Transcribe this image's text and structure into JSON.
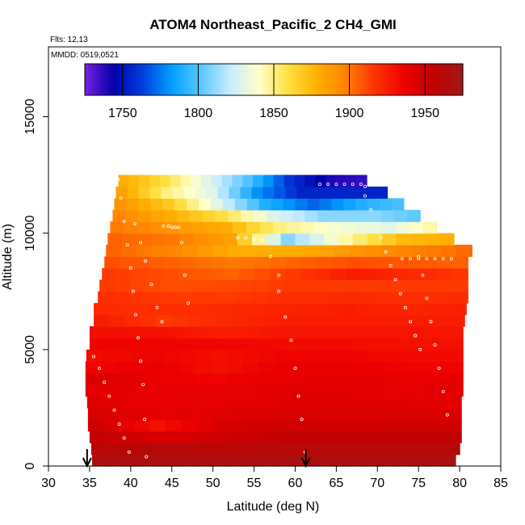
{
  "chart_data": {
    "type": "heatmap",
    "title": "ATOM4 Northeast_Pacific_2 CH4_GMI",
    "subtitle_flights": "Flts: 12,13",
    "subtitle_dates": "MMDD: 0519,0521",
    "xlabel": "Latitude (deg N)",
    "ylabel": "Altitude (m)",
    "xlim": [
      30,
      85
    ],
    "ylim": [
      0,
      18000
    ],
    "x_ticks": [
      30,
      35,
      40,
      45,
      50,
      55,
      60,
      65,
      70,
      75,
      80,
      85
    ],
    "y_ticks": [
      0,
      5000,
      10000,
      15000
    ],
    "x_tick_labels": [
      "30",
      "35",
      "40",
      "45",
      "50",
      "55",
      "60",
      "65",
      "70",
      "75",
      "80",
      "85"
    ],
    "y_tick_labels": [
      "0",
      "5000",
      "10000",
      "15000"
    ],
    "colorbar": {
      "min": 1725,
      "max": 1975,
      "ticks": [
        1750,
        1800,
        1850,
        1900,
        1950
      ],
      "tick_labels": [
        "1750",
        "1800",
        "1850",
        "1900",
        "1950"
      ],
      "colors": [
        "#7b1fe0",
        "#0000a8",
        "#0040e0",
        "#00a0ff",
        "#5cc8ff",
        "#c8ecff",
        "#ffffc8",
        "#ffe040",
        "#ffb000",
        "#ff8000",
        "#ff3000",
        "#ee0000",
        "#c00000",
        "#a01818"
      ]
    },
    "layers": [
      {
        "alt": 250,
        "lat_start": 35.3,
        "lat_end": 79.5,
        "values": [
          1968,
          1968,
          1968,
          1968,
          1968,
          1968,
          1968
        ]
      },
      {
        "alt": 750,
        "lat_start": 35.2,
        "lat_end": 80.0,
        "values": [
          1960,
          1962,
          1962,
          1962,
          1962,
          1962,
          1962
        ]
      },
      {
        "alt": 1250,
        "lat_start": 35.0,
        "lat_end": 80.2,
        "values": [
          1955,
          1945,
          1950,
          1955,
          1955,
          1955,
          1955
        ]
      },
      {
        "alt": 1750,
        "lat_start": 34.8,
        "lat_end": 80.2,
        "values": [
          1950,
          1930,
          1945,
          1950,
          1948,
          1950,
          1950
        ]
      },
      {
        "alt": 2250,
        "lat_start": 34.8,
        "lat_end": 80.2,
        "values": [
          1945,
          1940,
          1942,
          1945,
          1945,
          1945,
          1945
        ]
      },
      {
        "alt": 2750,
        "lat_start": 34.7,
        "lat_end": 80.2,
        "values": [
          1942,
          1938,
          1940,
          1942,
          1942,
          1942,
          1940
        ]
      },
      {
        "alt": 3250,
        "lat_start": 34.5,
        "lat_end": 80.4,
        "values": [
          1940,
          1940,
          1940,
          1942,
          1942,
          1940,
          1942
        ]
      },
      {
        "alt": 3750,
        "lat_start": 34.5,
        "lat_end": 80.4,
        "values": [
          1945,
          1938,
          1935,
          1940,
          1940,
          1938,
          1940
        ]
      },
      {
        "alt": 4250,
        "lat_start": 34.5,
        "lat_end": 80.4,
        "values": [
          1935,
          1938,
          1930,
          1938,
          1938,
          1935,
          1935
        ]
      },
      {
        "alt": 4750,
        "lat_start": 34.6,
        "lat_end": 80.4,
        "values": [
          1932,
          1935,
          1930,
          1935,
          1935,
          1932,
          1932
        ]
      },
      {
        "alt": 5250,
        "lat_start": 35.0,
        "lat_end": 80.4,
        "values": [
          1935,
          1935,
          1935,
          1932,
          1932,
          1930,
          1930
        ]
      },
      {
        "alt": 5750,
        "lat_start": 35.0,
        "lat_end": 80.4,
        "values": [
          1930,
          1930,
          1925,
          1928,
          1928,
          1928,
          1928
        ]
      },
      {
        "alt": 6250,
        "lat_start": 35.5,
        "lat_end": 80.6,
        "values": [
          1925,
          1915,
          1920,
          1925,
          1925,
          1925,
          1925
        ]
      },
      {
        "alt": 6750,
        "lat_start": 35.5,
        "lat_end": 80.8,
        "values": [
          1920,
          1918,
          1920,
          1922,
          1925,
          1922,
          1925
        ]
      },
      {
        "alt": 7250,
        "lat_start": 36.0,
        "lat_end": 81.0,
        "values": [
          1918,
          1915,
          1915,
          1918,
          1920,
          1918,
          1920
        ]
      },
      {
        "alt": 7750,
        "lat_start": 36.2,
        "lat_end": 81.0,
        "values": [
          1915,
          1910,
          1912,
          1915,
          1915,
          1915,
          1915
        ]
      },
      {
        "alt": 8250,
        "lat_start": 36.5,
        "lat_end": 81.0,
        "values": [
          1915,
          1910,
          1905,
          1915,
          1925,
          1920,
          1915
        ]
      },
      {
        "alt": 8750,
        "lat_start": 36.8,
        "lat_end": 81.0,
        "values": [
          1910,
          1905,
          1900,
          1905,
          1910,
          1908,
          1905
        ]
      },
      {
        "alt": 9250,
        "lat_start": 37.0,
        "lat_end": 81.5,
        "values": [
          1905,
          1895,
          1880,
          1880,
          1890,
          1898,
          1905
        ]
      },
      {
        "alt": 9750,
        "lat_start": 37.2,
        "lat_end": 79.3,
        "values": [
          1905,
          1900,
          1885,
          1810,
          1845,
          1875,
          1880
        ]
      },
      {
        "alt": 10250,
        "lat_start": 37.5,
        "lat_end": 77.2,
        "values": [
          1900,
          1890,
          1880,
          1850,
          1838,
          1830,
          1850
        ]
      },
      {
        "alt": 10750,
        "lat_start": 37.8,
        "lat_end": 75.2,
        "values": [
          1895,
          1880,
          1860,
          1830,
          1810,
          1810,
          1800
        ]
      },
      {
        "alt": 11250,
        "lat_start": 38.0,
        "lat_end": 73.2,
        "values": [
          1890,
          1870,
          1830,
          1790,
          1770,
          1790,
          1800
        ]
      },
      {
        "alt": 11750,
        "lat_start": 38.2,
        "lat_end": 71.2,
        "values": [
          1885,
          1850,
          1830,
          1780,
          1755,
          1755,
          1755
        ]
      },
      {
        "alt": 12250,
        "lat_start": 38.5,
        "lat_end": 68.7,
        "values": [
          1880,
          1860,
          1830,
          1800,
          1760,
          1740,
          1735
        ]
      }
    ],
    "flight_tracks": [
      {
        "name": "track-a",
        "lat": [
          38.5,
          38.8,
          39.2,
          39.6,
          40.0,
          40.3,
          40.6,
          40.9,
          41.2,
          41.5,
          41.7,
          41.9
        ],
        "alt": [
          12300,
          11500,
          10500,
          9500,
          8500,
          7500,
          6500,
          5500,
          4500,
          3500,
          2000,
          400
        ]
      },
      {
        "name": "track-b",
        "lat": [
          40.5,
          41.2,
          41.8,
          42.5,
          43.2,
          43.8
        ],
        "alt": [
          10400,
          9600,
          8800,
          7800,
          6800,
          6200
        ]
      },
      {
        "name": "track-c",
        "lat": [
          44.0,
          44.6,
          45.0,
          45.4,
          45.8,
          46.2,
          46.6,
          47.0
        ],
        "alt": [
          10300,
          10300,
          10250,
          10250,
          10250,
          9600,
          8200,
          7000
        ]
      },
      {
        "name": "track-d",
        "lat": [
          53.0,
          54.0,
          55.0,
          56.0,
          57.0,
          58.0
        ],
        "alt": [
          9800,
          9800,
          9750,
          9700,
          9000,
          8200
        ]
      },
      {
        "name": "track-e",
        "lat": [
          58.0,
          58.8,
          59.5,
          60.0,
          60.4,
          60.8,
          61.2
        ],
        "alt": [
          7500,
          6400,
          5400,
          4200,
          3000,
          2000,
          600
        ]
      },
      {
        "name": "track-f",
        "lat": [
          63.0,
          64.0,
          65.0,
          66.0,
          67.0,
          68.0,
          68.5
        ],
        "alt": [
          12100,
          12100,
          12100,
          12100,
          12100,
          12100,
          12000
        ]
      },
      {
        "name": "track-g",
        "lat": [
          68.5,
          69.2,
          69.8,
          70.4,
          71.0,
          71.6,
          72.2,
          72.8,
          73.4,
          74.0,
          74.6,
          75.2
        ],
        "alt": [
          11600,
          11000,
          10400,
          9800,
          9200,
          8600,
          8000,
          7400,
          6800,
          6200,
          5600,
          5000
        ]
      },
      {
        "name": "track-h",
        "lat": [
          75.0,
          75.5,
          76.0,
          76.5,
          77.0,
          77.5,
          78.0,
          78.5
        ],
        "alt": [
          9000,
          8200,
          7200,
          6200,
          5200,
          4200,
          3200,
          2200
        ]
      },
      {
        "name": "track-i",
        "lat": [
          34.8,
          35.5,
          36.2,
          36.8,
          37.4,
          38.0,
          38.6,
          39.2,
          39.8
        ],
        "alt": [
          5100,
          4700,
          4200,
          3600,
          3000,
          2400,
          1800,
          1200,
          600
        ]
      },
      {
        "name": "track-j",
        "lat": [
          73.0,
          74.0,
          75.0,
          76.0,
          77.0,
          78.0,
          79.0
        ],
        "alt": [
          8900,
          8900,
          8900,
          8900,
          8900,
          8900,
          8900
        ]
      }
    ],
    "arrows": [
      34.7,
      61.3
    ]
  }
}
